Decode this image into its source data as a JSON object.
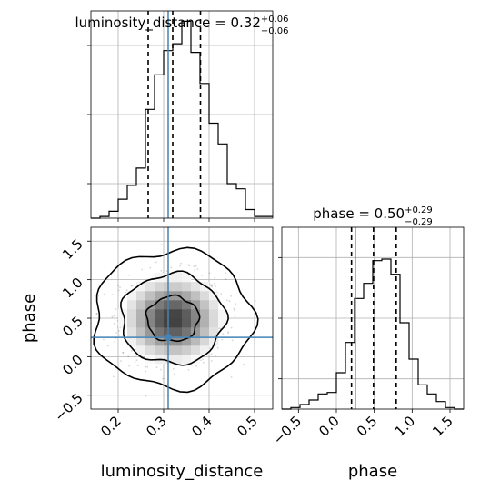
{
  "chart_data": {
    "type": "corner",
    "parameters": [
      "luminosity_distance",
      "phase"
    ],
    "true_values": {
      "luminosity_distance": 0.31,
      "phase": 0.25
    },
    "marginals": [
      {
        "parameter": "luminosity_distance",
        "title_prefix": "luminosity_distance = ",
        "median_text": "0.32",
        "err_plus": "+0.06",
        "err_minus": "−0.06",
        "quantiles": [
          0.266,
          0.32,
          0.381
        ],
        "xlim": [
          0.14,
          0.54
        ],
        "bin_edges": [
          0.14,
          0.16,
          0.18,
          0.2,
          0.22,
          0.24,
          0.26,
          0.28,
          0.3,
          0.32,
          0.34,
          0.36,
          0.38,
          0.4,
          0.42,
          0.44,
          0.46,
          0.48,
          0.5,
          0.52,
          0.54
        ],
        "counts": [
          0,
          1,
          4,
          11,
          19,
          29,
          63,
          83,
          97,
          101,
          114,
          96,
          78,
          55,
          43,
          20,
          17,
          5,
          1,
          1
        ],
        "ymax": 120
      },
      {
        "parameter": "phase",
        "title_prefix": "phase = ",
        "median_text": "0.50",
        "err_plus": "+0.29",
        "err_minus": "−0.29",
        "quantiles": [
          0.2,
          0.49,
          0.79
        ],
        "xlim": [
          -0.72,
          1.68
        ],
        "bin_edges": [
          -0.72,
          -0.6,
          -0.48,
          -0.36,
          -0.24,
          -0.12,
          0.0,
          0.12,
          0.24,
          0.36,
          0.48,
          0.6,
          0.72,
          0.84,
          0.96,
          1.08,
          1.2,
          1.32,
          1.44,
          1.56,
          1.68
        ],
        "counts": [
          0,
          1,
          3,
          6,
          10,
          11,
          24,
          44,
          73,
          83,
          98,
          99,
          89,
          57,
          33,
          16,
          10,
          5,
          1,
          0
        ],
        "ymax": 120
      }
    ],
    "joint": {
      "x": "luminosity_distance",
      "y": "phase",
      "xlim": [
        0.14,
        0.54
      ],
      "ylim": [
        -0.68,
        1.68
      ],
      "levels": [
        0.39,
        0.86,
        0.99
      ]
    },
    "axes": {
      "xlabel_left": "luminosity_distance",
      "xlabel_right": "phase",
      "ylabel": "phase",
      "x_ticks_left": [
        0.2,
        0.3,
        0.4,
        0.5
      ],
      "x_tick_labels_left": [
        "0.2",
        "0.3",
        "0.4",
        "0.5"
      ],
      "y_ticks_joint": [
        -0.5,
        0.0,
        0.5,
        1.0,
        1.5
      ],
      "y_tick_labels_joint": [
        "−0.5",
        "0.0",
        "0.5",
        "1.0",
        "1.5"
      ],
      "x_ticks_right": [
        -0.5,
        0.0,
        0.5,
        1.0,
        1.5
      ],
      "x_tick_labels_right": [
        "−0.5",
        "0.0",
        "0.5",
        "1.0",
        "1.5"
      ]
    },
    "grid": true,
    "colors": {
      "truth": "#4682b4",
      "hist": "#000000",
      "grid": "#b0b0b0"
    }
  }
}
